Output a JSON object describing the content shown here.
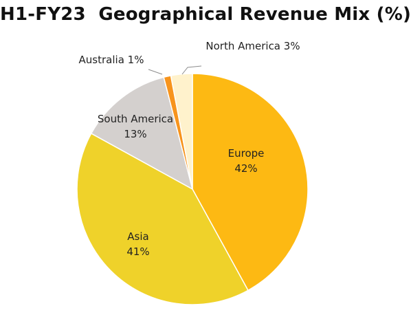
{
  "chart_data": {
    "type": "pie",
    "title": "H1-FY23  Geographical Revenue Mix (%)",
    "slices": [
      {
        "name": "Europe",
        "value": 42,
        "label_value": "42%",
        "color": "#FDB913"
      },
      {
        "name": "Asia",
        "value": 41,
        "label_value": "41%",
        "color": "#EFD22A"
      },
      {
        "name": "South America",
        "value": 13,
        "label_value": "13%",
        "color": "#D4D0CE"
      },
      {
        "name": "Australia",
        "value": 1,
        "label_value": "1%",
        "color": "#F7941D"
      },
      {
        "name": "North America",
        "value": 3,
        "label_value": "3%",
        "color": "#FFF2CC"
      }
    ],
    "legend": "none",
    "grid": false
  }
}
